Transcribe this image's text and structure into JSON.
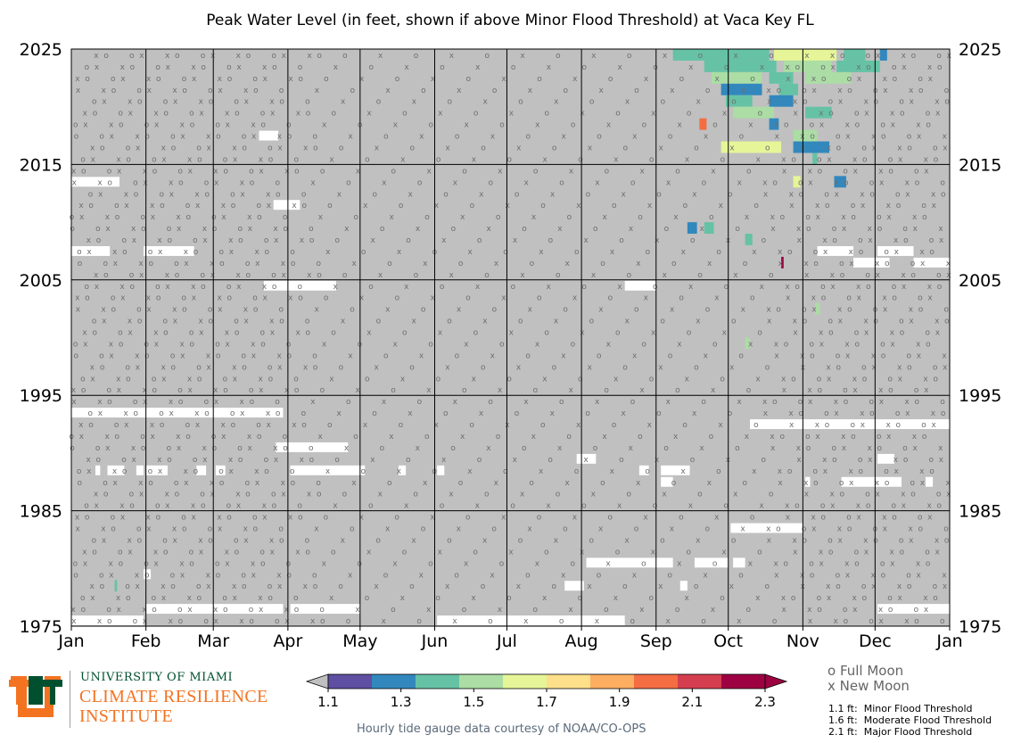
{
  "title": "Peak Water Level (in feet, shown if above Minor Flood Threshold) at Vaca Key FL",
  "chart_data": {
    "type": "heatmap",
    "title": "Peak Water Level (in feet, shown if above Minor Flood Threshold) at Vaca Key FL",
    "x_tick_labels": [
      "Jan",
      "Feb",
      "Mar",
      "Apr",
      "May",
      "Jun",
      "Jul",
      "Aug",
      "Sep",
      "Oct",
      "Nov",
      "Dec",
      "Jan"
    ],
    "y_tick_labels": [
      "2025",
      "2015",
      "2005",
      "1995",
      "1985",
      "1975"
    ],
    "y_range": [
      1975,
      2025
    ],
    "colorbar": {
      "min": 1.1,
      "max": 2.3,
      "ticks": [
        "1.1",
        "1.3",
        "1.5",
        "1.7",
        "1.9",
        "2.1",
        "2.3"
      ],
      "colors": [
        "#5e4fa2",
        "#3288bd",
        "#66c2a5",
        "#abdda4",
        "#e6f598",
        "#fee08b",
        "#fdae61",
        "#f46d43",
        "#d53e4f",
        "#9e0142"
      ],
      "under_color": "#c0c0c0",
      "over_color": "#9e0142"
    },
    "background_color": "#c0c0c0",
    "missing_data_color": "#ffffff",
    "grid": true,
    "markers": {
      "full_moon_symbol": "o",
      "new_moon_symbol": "x",
      "color": "#6f6f6f"
    },
    "flood_events": [
      {
        "year": 2024,
        "start_day": 250,
        "end_day": 290,
        "value": 1.45
      },
      {
        "year": 2024,
        "start_day": 292,
        "end_day": 318,
        "value": 1.6
      },
      {
        "year": 2024,
        "start_day": 321,
        "end_day": 330,
        "value": 1.35
      },
      {
        "year": 2024,
        "start_day": 336,
        "end_day": 339,
        "value": 1.3
      },
      {
        "year": 2023,
        "start_day": 263,
        "end_day": 293,
        "value": 1.4
      },
      {
        "year": 2023,
        "start_day": 296,
        "end_day": 316,
        "value": 1.5
      },
      {
        "year": 2023,
        "start_day": 318,
        "end_day": 336,
        "value": 1.45
      },
      {
        "year": 2022,
        "start_day": 266,
        "end_day": 287,
        "value": 1.55
      },
      {
        "year": 2022,
        "start_day": 290,
        "end_day": 300,
        "value": 1.35
      },
      {
        "year": 2022,
        "start_day": 305,
        "end_day": 324,
        "value": 1.5
      },
      {
        "year": 2021,
        "start_day": 270,
        "end_day": 287,
        "value": 1.3
      },
      {
        "year": 2021,
        "start_day": 294,
        "end_day": 302,
        "value": 1.4
      },
      {
        "year": 2020,
        "start_day": 272,
        "end_day": 283,
        "value": 1.4
      },
      {
        "year": 2020,
        "start_day": 290,
        "end_day": 300,
        "value": 1.3
      },
      {
        "year": 2019,
        "start_day": 275,
        "end_day": 292,
        "value": 1.5
      },
      {
        "year": 2019,
        "start_day": 305,
        "end_day": 316,
        "value": 1.45
      },
      {
        "year": 2018,
        "start_day": 261,
        "end_day": 264,
        "value": 2.05
      },
      {
        "year": 2018,
        "start_day": 290,
        "end_day": 294,
        "value": 1.3
      },
      {
        "year": 2017,
        "start_day": 300,
        "end_day": 310,
        "value": 1.55
      },
      {
        "year": 2016,
        "start_day": 270,
        "end_day": 295,
        "value": 1.6
      },
      {
        "year": 2016,
        "start_day": 300,
        "end_day": 315,
        "value": 1.3
      },
      {
        "year": 2015,
        "start_day": 308,
        "end_day": 310,
        "value": 1.35
      },
      {
        "year": 2013,
        "start_day": 300,
        "end_day": 303,
        "value": 1.65
      },
      {
        "year": 2013,
        "start_day": 317,
        "end_day": 322,
        "value": 1.25
      },
      {
        "year": 2009,
        "start_day": 256,
        "end_day": 260,
        "value": 1.3
      },
      {
        "year": 2009,
        "start_day": 263,
        "end_day": 267,
        "value": 1.4
      },
      {
        "year": 2008,
        "start_day": 280,
        "end_day": 283,
        "value": 1.45
      },
      {
        "year": 2006,
        "start_day": 295,
        "end_day": 296,
        "value": 2.25
      },
      {
        "year": 2002,
        "start_day": 309,
        "end_day": 311,
        "value": 1.5
      },
      {
        "year": 1999,
        "start_day": 280,
        "end_day": 282,
        "value": 1.55
      },
      {
        "year": 1978,
        "start_day": 18,
        "end_day": 19,
        "value": 1.4
      }
    ],
    "missing_periods": [
      {
        "year": 2017,
        "start_day": 78,
        "end_day": 86
      },
      {
        "year": 2013,
        "start_day": 0,
        "end_day": 20
      },
      {
        "year": 2011,
        "start_day": 84,
        "end_day": 95
      },
      {
        "year": 2007,
        "start_day": 0,
        "end_day": 16
      },
      {
        "year": 2007,
        "start_day": 30,
        "end_day": 51
      },
      {
        "year": 2007,
        "start_day": 310,
        "end_day": 325
      },
      {
        "year": 2007,
        "start_day": 335,
        "end_day": 350
      },
      {
        "year": 2006,
        "start_day": 325,
        "end_day": 340
      },
      {
        "year": 2006,
        "start_day": 350,
        "end_day": 365
      },
      {
        "year": 2004,
        "start_day": 80,
        "end_day": 110
      },
      {
        "year": 2004,
        "start_day": 230,
        "end_day": 243
      },
      {
        "year": 1993,
        "start_day": 0,
        "end_day": 88
      },
      {
        "year": 1992,
        "start_day": 282,
        "end_day": 365
      },
      {
        "year": 1990,
        "start_day": 85,
        "end_day": 115
      },
      {
        "year": 1989,
        "start_day": 210,
        "end_day": 218
      },
      {
        "year": 1989,
        "start_day": 335,
        "end_day": 342
      },
      {
        "year": 1988,
        "start_day": 10,
        "end_day": 12
      },
      {
        "year": 1988,
        "start_day": 15,
        "end_day": 22
      },
      {
        "year": 1988,
        "start_day": 27,
        "end_day": 30
      },
      {
        "year": 1988,
        "start_day": 31,
        "end_day": 40
      },
      {
        "year": 1988,
        "start_day": 52,
        "end_day": 56
      },
      {
        "year": 1988,
        "start_day": 60,
        "end_day": 64
      },
      {
        "year": 1988,
        "start_day": 91,
        "end_day": 122
      },
      {
        "year": 1988,
        "start_day": 136,
        "end_day": 139
      },
      {
        "year": 1988,
        "start_day": 152,
        "end_day": 155
      },
      {
        "year": 1988,
        "start_day": 236,
        "end_day": 240
      },
      {
        "year": 1988,
        "start_day": 245,
        "end_day": 257
      },
      {
        "year": 1987,
        "start_day": 245,
        "end_day": 250
      },
      {
        "year": 1987,
        "start_day": 305,
        "end_day": 307
      },
      {
        "year": 1987,
        "start_day": 320,
        "end_day": 345
      },
      {
        "year": 1987,
        "start_day": 355,
        "end_day": 358
      },
      {
        "year": 1983,
        "start_day": 274,
        "end_day": 304
      },
      {
        "year": 1980,
        "start_day": 214,
        "end_day": 250
      },
      {
        "year": 1980,
        "start_day": 259,
        "end_day": 273
      },
      {
        "year": 1980,
        "start_day": 275,
        "end_day": 280
      },
      {
        "year": 1979,
        "start_day": 30,
        "end_day": 33
      },
      {
        "year": 1978,
        "start_day": 205,
        "end_day": 213
      },
      {
        "year": 1978,
        "start_day": 253,
        "end_day": 256
      },
      {
        "year": 1976,
        "start_day": 31,
        "end_day": 88
      },
      {
        "year": 1976,
        "start_day": 91,
        "end_day": 120
      },
      {
        "year": 1976,
        "start_day": 335,
        "end_day": 365
      },
      {
        "year": 1975,
        "start_day": 0,
        "end_day": 30
      },
      {
        "year": 1975,
        "start_day": 152,
        "end_day": 181
      },
      {
        "year": 1975,
        "start_day": 181,
        "end_day": 230
      }
    ]
  },
  "moon_legend": {
    "full_moon": "o  Full Moon",
    "new_moon": "x  New Moon"
  },
  "thresholds": [
    {
      "value": "1.1 ft:",
      "label": "Minor Flood Threshold"
    },
    {
      "value": "1.6 ft:",
      "label": "Moderate Flood Threshold"
    },
    {
      "value": "2.1 ft:",
      "label": "Major Flood Threshold"
    }
  ],
  "credit": "Hourly tide gauge data courtesy of NOAA/CO-OPS",
  "brand": {
    "university": "UNIVERSITY OF MIAMI",
    "line1": "CLIMATE RESILIENCE",
    "line2": "INSTITUTE",
    "colors": {
      "green": "#005030",
      "orange": "#f47321"
    }
  }
}
